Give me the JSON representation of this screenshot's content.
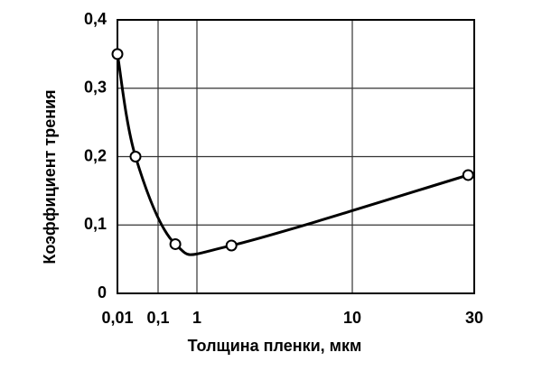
{
  "chart_data": {
    "type": "line",
    "x_label": "Толщина пленки, мкм",
    "y_label": "Коэффициент трения",
    "x": [
      0.01,
      0.05,
      0.5,
      3,
      29
    ],
    "values": [
      0.35,
      0.2,
      0.072,
      0.07,
      0.173
    ],
    "color": "#000000",
    "xticks": [
      {
        "value": 0.01,
        "label": "0,01"
      },
      {
        "value": 0.1,
        "label": "0,1"
      },
      1,
      10,
      30
    ],
    "xlim": [
      0.01,
      30
    ],
    "ylim": [
      0,
      0.4
    ],
    "yticks": [
      0,
      {
        "value": 0.1,
        "label": "0,1"
      },
      {
        "value": 0.2,
        "label": "0,2"
      },
      {
        "value": 0.3,
        "label": "0,3"
      },
      {
        "value": 0.4,
        "label": "0,4"
      }
    ],
    "grid": true
  }
}
